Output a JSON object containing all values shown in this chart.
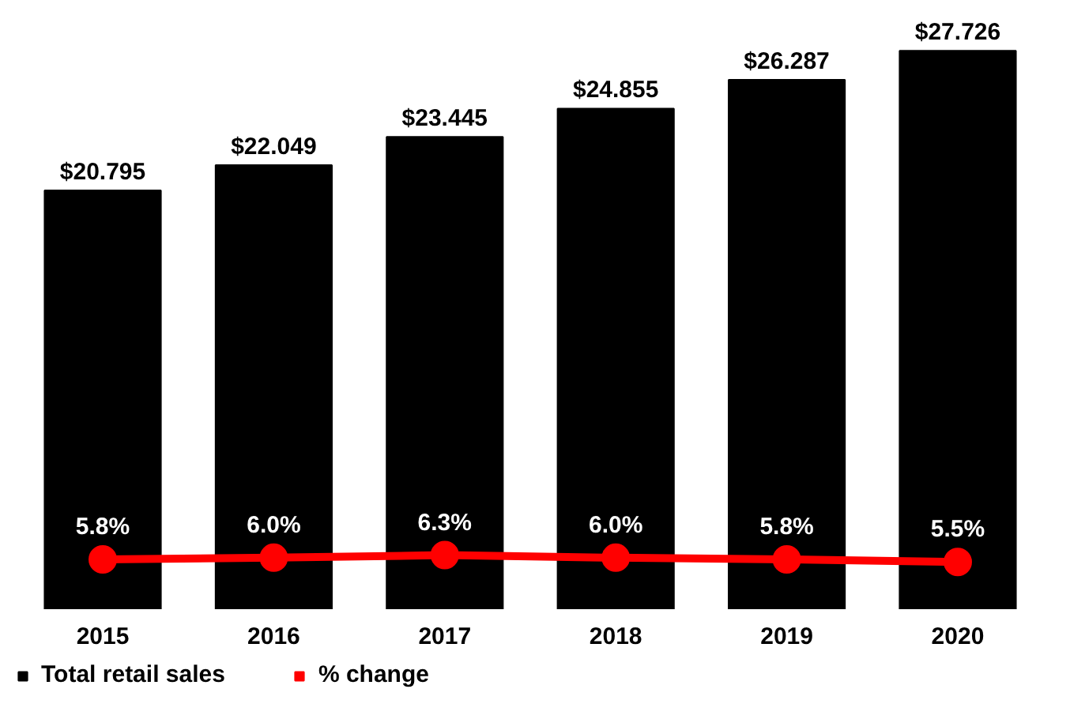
{
  "chart_data": {
    "type": "bar",
    "categories": [
      "2015",
      "2016",
      "2017",
      "2018",
      "2019",
      "2020"
    ],
    "series": [
      {
        "name": "Total retail sales",
        "color": "#000000",
        "values": [
          20.795,
          22.049,
          23.445,
          24.855,
          26.287,
          27.726
        ],
        "value_labels": [
          "$20.795",
          "$22.049",
          "$23.445",
          "$24.855",
          "$26.287",
          "$27.726"
        ]
      },
      {
        "name": "% change",
        "color": "#ff0000",
        "type": "line",
        "axis": "y2",
        "marker": "circle",
        "values": [
          5.8,
          6.0,
          6.3,
          6.0,
          5.8,
          5.5
        ],
        "value_labels": [
          "5.8%",
          "6.0%",
          "6.3%",
          "6.0%",
          "5.8%",
          "5.5%"
        ]
      }
    ],
    "legend": "bottom",
    "tick_labels": "x"
  }
}
